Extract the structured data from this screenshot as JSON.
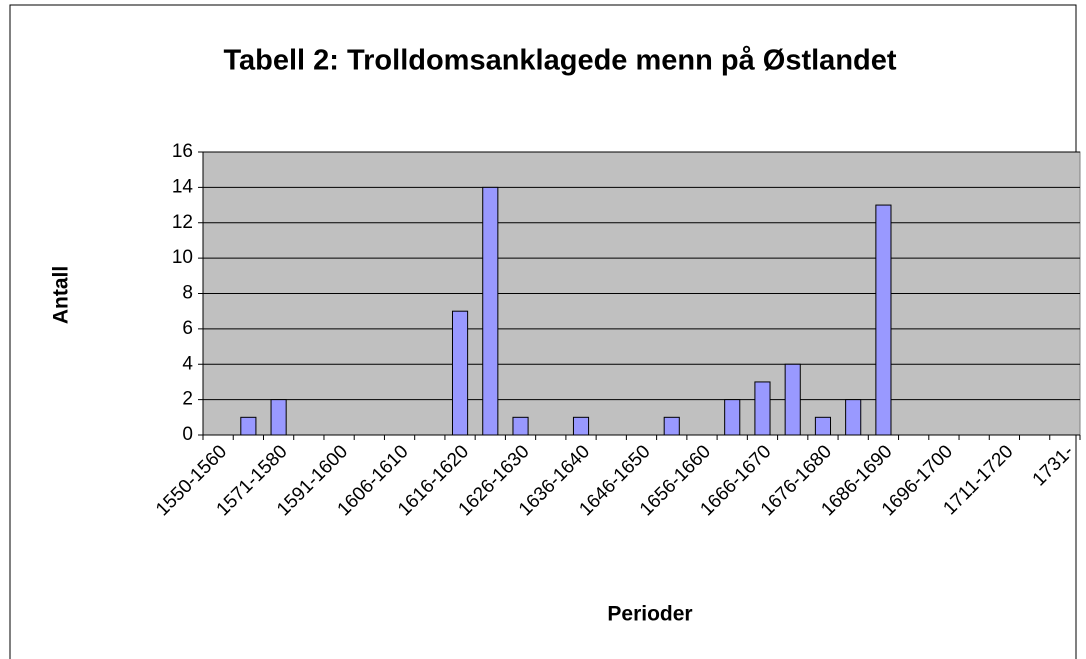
{
  "chart_data": {
    "type": "bar",
    "title": "Tabell 2: Trolldomsanklagede menn på Østlandet",
    "x_label": "Perioder",
    "y_label": "Antall",
    "categories": [
      "1550-1560",
      null,
      "1571-1580",
      null,
      "1591-1600",
      null,
      "1606-1610",
      null,
      "1616-1620",
      null,
      "1626-1630",
      null,
      "1636-1640",
      null,
      "1646-1650",
      null,
      "1656-1660",
      null,
      "1666-1670",
      null,
      "1676-1680",
      null,
      "1686-1690",
      null,
      "1696-1700",
      null,
      "1711-1720",
      null,
      "1731-"
    ],
    "values": [
      0,
      1,
      2,
      0,
      0,
      0,
      0,
      0,
      7,
      14,
      1,
      0,
      1,
      0,
      0,
      1,
      0,
      2,
      3,
      4,
      1,
      2,
      13,
      0,
      0,
      0,
      0,
      0,
      0
    ],
    "color": "#9999ff",
    "plot_background": "#c0c0c0",
    "ylim": [
      0,
      16
    ],
    "yticks": [
      0,
      2,
      4,
      6,
      8,
      10,
      12,
      14,
      16
    ],
    "grid": true
  }
}
